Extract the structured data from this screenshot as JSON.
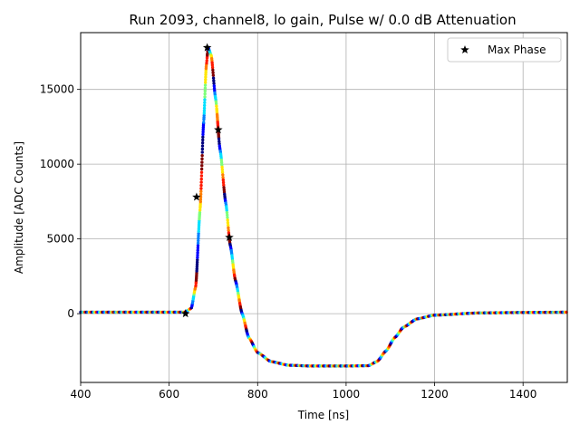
{
  "chart_data": {
    "type": "scatter",
    "title": "Run 2093, channel8, lo gain, Pulse w/ 0.0 dB Attenuation",
    "xlabel": "Time [ns]",
    "ylabel": "Amplitude [ADC Counts]",
    "xlim": [
      400,
      1500
    ],
    "ylim": [
      -4600,
      18800
    ],
    "xticks": [
      400,
      600,
      800,
      1000,
      1200,
      1400
    ],
    "xtick_labels": [
      "400",
      "600",
      "800",
      "1000",
      "1200",
      "1400"
    ],
    "yticks": [
      0,
      5000,
      10000,
      15000
    ],
    "ytick_labels": [
      "0",
      "5000",
      "10000",
      "15000"
    ],
    "grid": true,
    "legend": {
      "position": "upper right",
      "label": "Max Phase"
    },
    "colormap": [
      "#00007f",
      "#0000ff",
      "#0080ff",
      "#00e0ff",
      "#7dff7a",
      "#ffe600",
      "#ff7f00",
      "#ff1a00",
      "#7f0000"
    ],
    "color_period_ns": 12.5,
    "waveform_points": [
      [
        400,
        100
      ],
      [
        600,
        100
      ],
      [
        635,
        100
      ],
      [
        650,
        350
      ],
      [
        660,
        1800
      ],
      [
        670,
        7000
      ],
      [
        678,
        12800
      ],
      [
        684,
        16600
      ],
      [
        688,
        17800
      ],
      [
        695,
        17300
      ],
      [
        705,
        14400
      ],
      [
        715,
        11000
      ],
      [
        728,
        7400
      ],
      [
        738,
        4600
      ],
      [
        750,
        2200
      ],
      [
        765,
        0
      ],
      [
        780,
        -1600
      ],
      [
        800,
        -2600
      ],
      [
        830,
        -3200
      ],
      [
        870,
        -3450
      ],
      [
        920,
        -3500
      ],
      [
        1000,
        -3500
      ],
      [
        1050,
        -3480
      ],
      [
        1070,
        -3200
      ],
      [
        1090,
        -2500
      ],
      [
        1110,
        -1600
      ],
      [
        1130,
        -900
      ],
      [
        1160,
        -350
      ],
      [
        1200,
        -100
      ],
      [
        1300,
        50
      ],
      [
        1400,
        80
      ],
      [
        1500,
        100
      ]
    ],
    "max_phase_points": [
      {
        "x": 637,
        "y": 0
      },
      {
        "x": 662,
        "y": 7800
      },
      {
        "x": 686,
        "y": 17800
      },
      {
        "x": 711,
        "y": 12300
      },
      {
        "x": 736,
        "y": 5100
      }
    ]
  }
}
